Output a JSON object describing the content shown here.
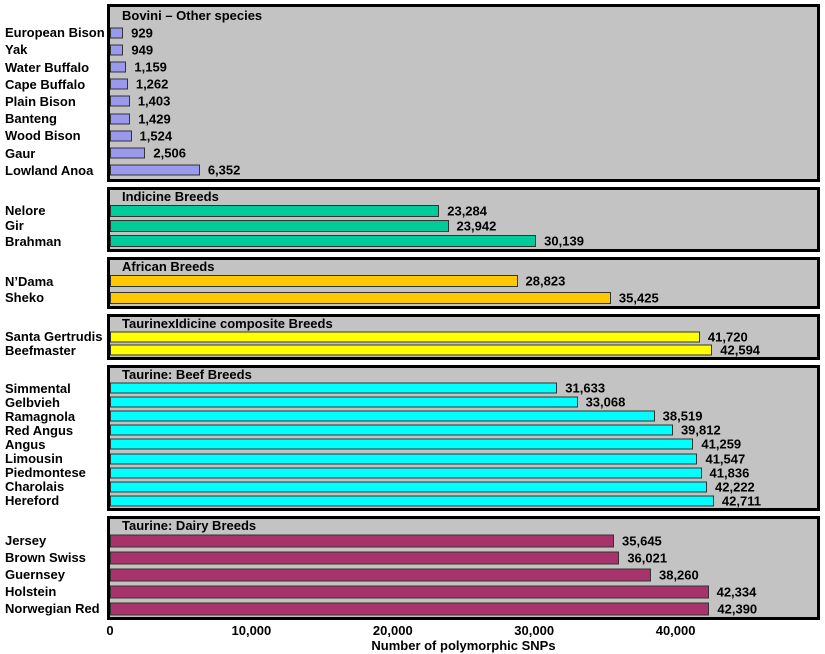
{
  "figure": {
    "background": "#FFFFFF",
    "panel_bg": "#C3C3C3",
    "panel_border": "#000000",
    "bar_border": "#333333"
  },
  "chart_data": {
    "type": "bar",
    "orientation": "horizontal",
    "title": "",
    "xlabel": "Number of polymorphic SNPs",
    "ylabel": "",
    "xlim": [
      0,
      50000
    ],
    "grid": false,
    "legend": "none",
    "ticks": [
      {
        "value": 0,
        "label": "0"
      },
      {
        "value": 10000,
        "label": "10,000"
      },
      {
        "value": 20000,
        "label": "20,000"
      },
      {
        "value": 30000,
        "label": "30,000"
      },
      {
        "value": 40000,
        "label": "40,000"
      }
    ],
    "groups": [
      {
        "title": "Bovini – Other species",
        "color": "#9999EE",
        "bars": [
          {
            "category": "European Bison",
            "value": 929,
            "label": "929"
          },
          {
            "category": "Yak",
            "value": 949,
            "label": "949"
          },
          {
            "category": "Water Buffalo",
            "value": 1159,
            "label": "1,159"
          },
          {
            "category": "Cape Buffalo",
            "value": 1262,
            "label": "1,262"
          },
          {
            "category": "Plain Bison",
            "value": 1403,
            "label": "1,403"
          },
          {
            "category": "Banteng",
            "value": 1429,
            "label": "1,429"
          },
          {
            "category": "Wood Bison",
            "value": 1524,
            "label": "1,524"
          },
          {
            "category": "Gaur",
            "value": 2506,
            "label": "2,506"
          },
          {
            "category": "Lowland Anoa",
            "value": 6352,
            "label": "6,352"
          }
        ]
      },
      {
        "title": "Indicine Breeds",
        "color": "#00CC99",
        "bars": [
          {
            "category": "Nelore",
            "value": 23284,
            "label": "23,284"
          },
          {
            "category": "Gir",
            "value": 23942,
            "label": "23,942"
          },
          {
            "category": "Brahman",
            "value": 30139,
            "label": "30,139"
          }
        ]
      },
      {
        "title": "African Breeds",
        "color": "#FFC800",
        "bars": [
          {
            "category": "N’Dama",
            "value": 28823,
            "label": "28,823"
          },
          {
            "category": "Sheko",
            "value": 35425,
            "label": "35,425"
          }
        ]
      },
      {
        "title": "TaurinexIdicine composite Breeds",
        "color": "#FFFF00",
        "bars": [
          {
            "category": "Santa Gertrudis",
            "value": 41720,
            "label": "41,720"
          },
          {
            "category": "Beefmaster",
            "value": 42594,
            "label": "42,594"
          }
        ]
      },
      {
        "title": "Taurine: Beef Breeds",
        "color": "#00FFFF",
        "bars": [
          {
            "category": "Simmental",
            "value": 31633,
            "label": "31,633"
          },
          {
            "category": "Gelbvieh",
            "value": 33068,
            "label": "33,068"
          },
          {
            "category": "Ramagnola",
            "value": 38519,
            "label": "38,519"
          },
          {
            "category": "Red Angus",
            "value": 39812,
            "label": "39,812"
          },
          {
            "category": "Angus",
            "value": 41259,
            "label": "41,259"
          },
          {
            "category": "Limousin",
            "value": 41547,
            "label": "41,547"
          },
          {
            "category": "Piedmontese",
            "value": 41836,
            "label": "41,836"
          },
          {
            "category": "Charolais",
            "value": 42222,
            "label": "42,222"
          },
          {
            "category": "Hereford",
            "value": 42711,
            "label": "42,711"
          }
        ]
      },
      {
        "title": "Taurine: Dairy Breeds",
        "color": "#A8336B",
        "bars": [
          {
            "category": "Jersey",
            "value": 35645,
            "label": "35,645"
          },
          {
            "category": "Brown Swiss",
            "value": 36021,
            "label": "36,021"
          },
          {
            "category": "Guernsey",
            "value": 38260,
            "label": "38,260"
          },
          {
            "category": "Holstein",
            "value": 42334,
            "label": "42,334"
          },
          {
            "category": "Norwegian Red",
            "value": 42390,
            "label": "42,390"
          }
        ]
      }
    ]
  }
}
